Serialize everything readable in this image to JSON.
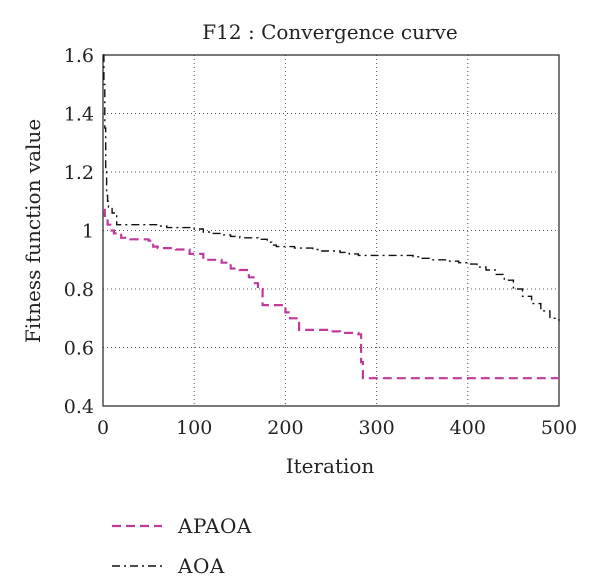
{
  "chart_data": {
    "type": "line",
    "title": "F12 : Convergence curve",
    "xlabel": "Iteration",
    "ylabel": "Fitness function value",
    "xlim": [
      0,
      500
    ],
    "ylim": [
      0.4,
      1.6
    ],
    "xticks": [
      "0",
      "100",
      "200",
      "300",
      "400",
      "500"
    ],
    "yticks": [
      "0.4",
      "0.6",
      "0.8",
      "1",
      "1.2",
      "1.4",
      "1.6"
    ],
    "grid": true,
    "legend_position": "below",
    "series": [
      {
        "name": "APAOA",
        "color": "#c03a9c",
        "style": "dashed",
        "x": [
          0,
          2,
          5,
          8,
          12,
          15,
          20,
          25,
          30,
          40,
          50,
          55,
          60,
          80,
          95,
          100,
          110,
          120,
          130,
          140,
          150,
          160,
          165,
          170,
          175,
          185,
          200,
          205,
          210,
          215,
          222,
          240,
          250,
          260,
          280,
          283,
          285,
          290,
          300,
          350,
          400,
          450,
          500
        ],
        "y": [
          1.07,
          1.05,
          1.02,
          1.0,
          0.99,
          0.985,
          0.975,
          0.975,
          0.97,
          0.97,
          0.965,
          0.945,
          0.94,
          0.935,
          0.92,
          0.92,
          0.9,
          0.9,
          0.89,
          0.87,
          0.865,
          0.84,
          0.82,
          0.8,
          0.745,
          0.745,
          0.72,
          0.7,
          0.7,
          0.66,
          0.66,
          0.66,
          0.655,
          0.65,
          0.645,
          0.55,
          0.495,
          0.495,
          0.495,
          0.495,
          0.495,
          0.495,
          0.495
        ]
      },
      {
        "name": "AOA",
        "color": "#111111",
        "style": "dashdot",
        "x": [
          0,
          1,
          2,
          3,
          4,
          5,
          6,
          8,
          10,
          15,
          20,
          25,
          30,
          50,
          60,
          70,
          80,
          90,
          100,
          110,
          120,
          130,
          140,
          150,
          160,
          170,
          180,
          185,
          190,
          200,
          210,
          220,
          230,
          240,
          250,
          260,
          270,
          280,
          290,
          300,
          320,
          340,
          350,
          360,
          380,
          390,
          400,
          410,
          420,
          430,
          440,
          450,
          460,
          470,
          480,
          490,
          500
        ],
        "y": [
          1.6,
          1.5,
          1.35,
          1.2,
          1.12,
          1.1,
          1.08,
          1.075,
          1.06,
          1.02,
          1.02,
          1.02,
          1.02,
          1.02,
          1.015,
          1.01,
          1.01,
          1.01,
          1.005,
          0.995,
          0.99,
          0.985,
          0.98,
          0.975,
          0.975,
          0.97,
          0.96,
          0.95,
          0.945,
          0.945,
          0.94,
          0.94,
          0.935,
          0.93,
          0.93,
          0.925,
          0.92,
          0.915,
          0.915,
          0.915,
          0.915,
          0.91,
          0.905,
          0.9,
          0.895,
          0.89,
          0.885,
          0.875,
          0.865,
          0.85,
          0.83,
          0.8,
          0.775,
          0.75,
          0.725,
          0.7,
          0.69
        ]
      }
    ]
  }
}
